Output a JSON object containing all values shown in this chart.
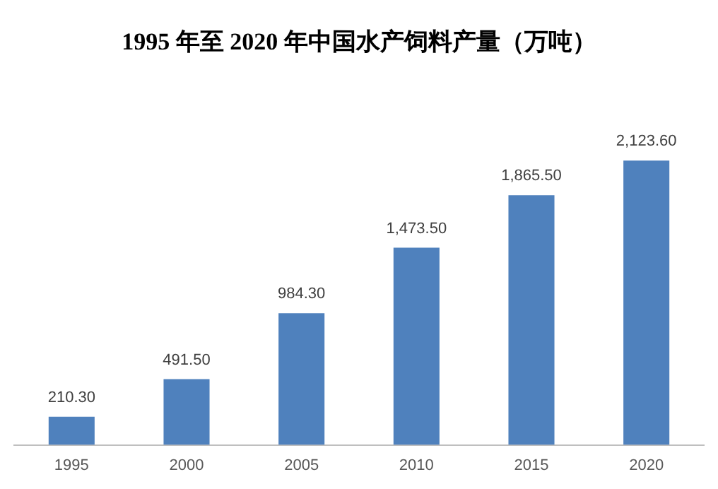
{
  "chart_data": {
    "type": "bar",
    "title": "1995 年至 2020 年中国水产饲料产量（万吨）",
    "categories": [
      "1995",
      "2000",
      "2005",
      "2010",
      "2015",
      "2020"
    ],
    "values": [
      210.3,
      491.5,
      984.3,
      1473.5,
      1865.5,
      2123.6
    ],
    "value_labels": [
      "210.30",
      "491.50",
      "984.30",
      "1,473.50",
      "1,865.50",
      "2,123.60"
    ],
    "color": "#4f81bd",
    "grid": false,
    "legend": false,
    "tick_labels": "x"
  }
}
